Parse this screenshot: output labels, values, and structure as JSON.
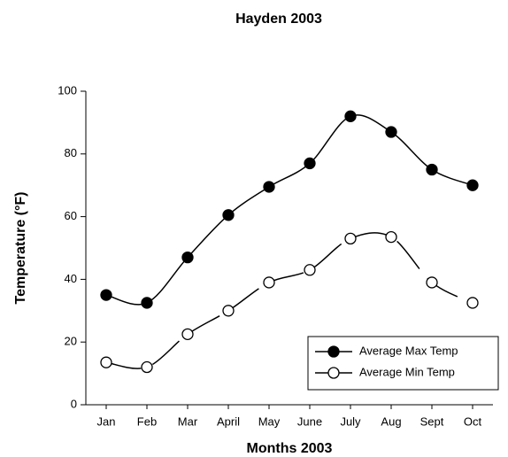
{
  "chart_data": {
    "type": "line",
    "title": "Hayden 2003",
    "x_label": "Months 2003",
    "y_label": "Temperature (°F)",
    "categories": [
      "Jan",
      "Feb",
      "Mar",
      "April",
      "May",
      "June",
      "July",
      "Aug",
      "Sept",
      "Oct"
    ],
    "series": [
      {
        "name": "Average Max Temp",
        "color": "#000000",
        "marker": "filled",
        "values": [
          35,
          32.5,
          47,
          60.5,
          69.5,
          77,
          92,
          87,
          75,
          70
        ]
      },
      {
        "name": "Average Min Temp",
        "color": "#000000",
        "marker": "open",
        "values": [
          13.5,
          12,
          22.5,
          30,
          39,
          43,
          53,
          53.5,
          39,
          32.5
        ]
      }
    ],
    "ylim": [
      0,
      100
    ],
    "yticks": [
      0,
      20,
      40,
      60,
      80,
      100
    ],
    "legend": "lower right"
  }
}
